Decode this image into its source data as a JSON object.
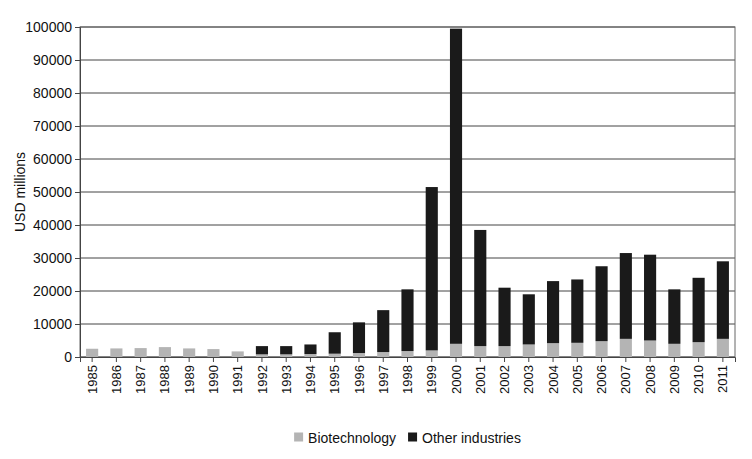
{
  "chart_data": {
    "type": "bar",
    "stacked": true,
    "grid": true,
    "legend": "bottom",
    "y_label": "USD millions",
    "categories": [
      "1985",
      "1986",
      "1987",
      "1988",
      "1989",
      "1990",
      "1991",
      "1992",
      "1993",
      "1994",
      "1995",
      "1996",
      "1997",
      "1998",
      "1999",
      "2000",
      "2001",
      "2002",
      "2003",
      "2004",
      "2005",
      "2006",
      "2007",
      "2008",
      "2009",
      "2010",
      "2011"
    ],
    "series": [
      {
        "name": "Biotechnology",
        "color": "#b4b4b4",
        "values": [
          2500,
          2600,
          2700,
          3000,
          2600,
          2400,
          1700,
          800,
          800,
          900,
          1000,
          1200,
          1500,
          1800,
          2000,
          4000,
          3300,
          3300,
          3800,
          4200,
          4300,
          4800,
          5500,
          5000,
          4000,
          4500,
          5500
        ]
      },
      {
        "name": "Other industries",
        "color": "#1a1a1a",
        "values": [
          0,
          0,
          0,
          0,
          0,
          0,
          0,
          2500,
          2500,
          2900,
          6500,
          9300,
          12700,
          18700,
          49500,
          95500,
          35200,
          17700,
          15200,
          18800,
          19200,
          22700,
          26000,
          26000,
          16500,
          19500,
          23500
        ]
      }
    ],
    "ylim": [
      0,
      100000
    ],
    "yticks": [
      0,
      10000,
      20000,
      30000,
      40000,
      50000,
      60000,
      70000,
      80000,
      90000,
      100000
    ]
  }
}
